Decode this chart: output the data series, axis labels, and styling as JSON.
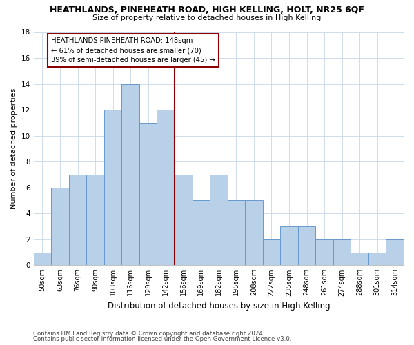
{
  "title1": "HEATHLANDS, PINEHEATH ROAD, HIGH KELLING, HOLT, NR25 6QF",
  "title2": "Size of property relative to detached houses in High Kelling",
  "xlabel": "Distribution of detached houses by size in High Kelling",
  "ylabel": "Number of detached properties",
  "categories": [
    "50sqm",
    "63sqm",
    "76sqm",
    "90sqm",
    "103sqm",
    "116sqm",
    "129sqm",
    "142sqm",
    "156sqm",
    "169sqm",
    "182sqm",
    "195sqm",
    "208sqm",
    "222sqm",
    "235sqm",
    "248sqm",
    "261sqm",
    "274sqm",
    "288sqm",
    "301sqm",
    "314sqm"
  ],
  "values": [
    1,
    6,
    7,
    7,
    12,
    14,
    11,
    12,
    7,
    5,
    7,
    5,
    5,
    2,
    3,
    3,
    2,
    2,
    1,
    1,
    2
  ],
  "bar_color": "#b8d0e8",
  "bar_edge_color": "#6699cc",
  "annotation_text": "HEATHLANDS PINEHEATH ROAD: 148sqm\n← 61% of detached houses are smaller (70)\n39% of semi-detached houses are larger (45) →",
  "ylim": [
    0,
    18
  ],
  "yticks": [
    0,
    2,
    4,
    6,
    8,
    10,
    12,
    14,
    16,
    18
  ],
  "footnote1": "Contains HM Land Registry data © Crown copyright and database right 2024.",
  "footnote2": "Contains public sector information licensed under the Open Government Licence v3.0.",
  "bg_color": "#ffffff",
  "grid_color": "#c8d8e8"
}
